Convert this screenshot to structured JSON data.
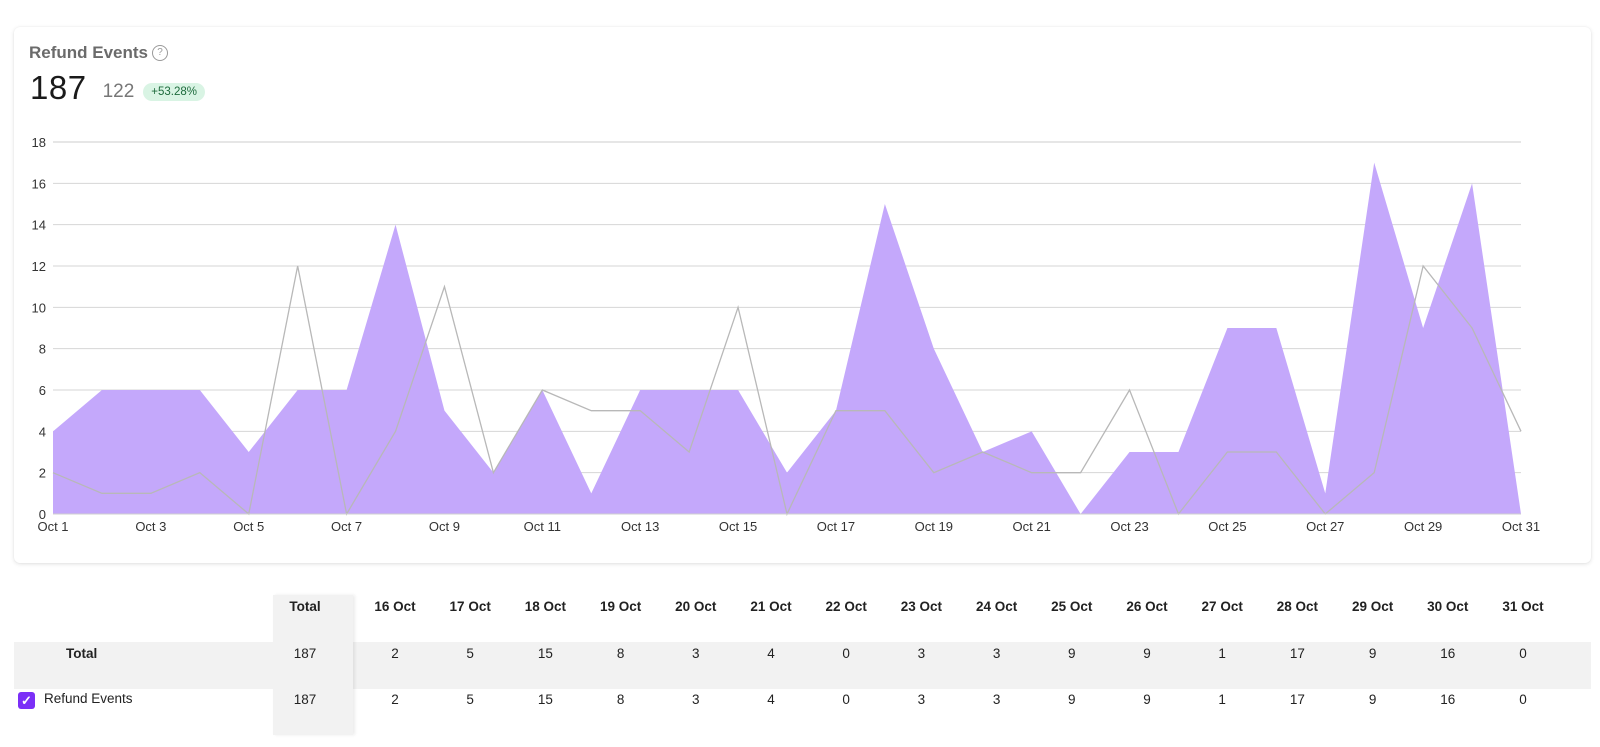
{
  "card": {
    "title": "Refund Events",
    "help_icon": "question-circle-icon",
    "metric_value": "187",
    "metric_previous": "122",
    "metric_change": "+53.28%"
  },
  "colors": {
    "area_fill": "#c4a8fb",
    "comparison_line": "#b8b8b8",
    "grid": "#d6d6d6",
    "badge_bg": "#d9f4e4",
    "badge_text": "#1e6b3d",
    "checkbox": "#7b2ff7"
  },
  "chart_data": {
    "type": "area",
    "x": [
      "Oct 1",
      "Oct 2",
      "Oct 3",
      "Oct 4",
      "Oct 5",
      "Oct 6",
      "Oct 7",
      "Oct 8",
      "Oct 9",
      "Oct 10",
      "Oct 11",
      "Oct 12",
      "Oct 13",
      "Oct 14",
      "Oct 15",
      "Oct 16",
      "Oct 17",
      "Oct 18",
      "Oct 19",
      "Oct 20",
      "Oct 21",
      "Oct 22",
      "Oct 23",
      "Oct 24",
      "Oct 25",
      "Oct 26",
      "Oct 27",
      "Oct 28",
      "Oct 29",
      "Oct 30",
      "Oct 31"
    ],
    "x_tick_labels": [
      "Oct 1",
      "Oct 3",
      "Oct 5",
      "Oct 7",
      "Oct 9",
      "Oct 11",
      "Oct 13",
      "Oct 15",
      "Oct 17",
      "Oct 19",
      "Oct 21",
      "Oct 23",
      "Oct 25",
      "Oct 27",
      "Oct 29",
      "Oct 31"
    ],
    "series": [
      {
        "style": "area",
        "values": [
          4,
          6,
          6,
          6,
          3,
          6,
          6,
          14,
          5,
          2,
          6,
          1,
          6,
          6,
          6,
          2,
          5,
          15,
          8,
          3,
          4,
          0,
          3,
          3,
          9,
          9,
          1,
          17,
          9,
          16,
          0
        ]
      },
      {
        "style": "line",
        "values": [
          2,
          1,
          1,
          2,
          0,
          12,
          0,
          4,
          11,
          2,
          6,
          5,
          5,
          3,
          10,
          0,
          5,
          5,
          2,
          3,
          2,
          2,
          6,
          0,
          3,
          3,
          0,
          2,
          12,
          9,
          4
        ]
      }
    ],
    "ylim": [
      0,
      18
    ],
    "y_ticks": [
      "0",
      "2",
      "4",
      "6",
      "8",
      "10",
      "12",
      "14",
      "16",
      "18"
    ],
    "grid": true
  },
  "table": {
    "total_header": "Total",
    "date_headers": [
      "16 Oct",
      "17 Oct",
      "18 Oct",
      "19 Oct",
      "20 Oct",
      "21 Oct",
      "22 Oct",
      "23 Oct",
      "24 Oct",
      "25 Oct",
      "26 Oct",
      "27 Oct",
      "28 Oct",
      "29 Oct",
      "30 Oct",
      "31 Oct"
    ],
    "rows": [
      {
        "label": "Total",
        "total": "187",
        "values": [
          "2",
          "5",
          "15",
          "8",
          "3",
          "4",
          "0",
          "3",
          "3",
          "9",
          "9",
          "1",
          "17",
          "9",
          "16",
          "0"
        ]
      },
      {
        "label": "Refund Events",
        "checked": true,
        "total": "187",
        "values": [
          "2",
          "5",
          "15",
          "8",
          "3",
          "4",
          "0",
          "3",
          "3",
          "9",
          "9",
          "1",
          "17",
          "9",
          "16",
          "0"
        ]
      }
    ]
  }
}
